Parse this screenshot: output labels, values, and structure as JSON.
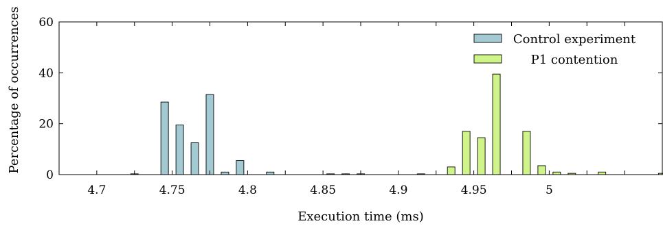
{
  "chart_data": {
    "type": "bar",
    "title": "",
    "xlabel": "Execution time (ms)",
    "ylabel": "Percentage of occurrences",
    "xlim": [
      4.675,
      5.075
    ],
    "ylim": [
      0,
      60
    ],
    "x_ticks": [
      4.7,
      4.75,
      4.8,
      4.85,
      4.9,
      4.95,
      5
    ],
    "x_tick_labels": [
      "4.7",
      "4.75",
      "4.8",
      "4.85",
      "4.9",
      "4.95",
      "5"
    ],
    "y_ticks": [
      0,
      20,
      40,
      60
    ],
    "y_tick_labels": [
      "0",
      "20",
      "40",
      "60"
    ],
    "grid": false,
    "legend_position": "top-right",
    "bar_width": 0.005,
    "series": [
      {
        "name": "Control experiment",
        "color": "#a3cad3",
        "x": [
          4.725,
          4.745,
          4.755,
          4.765,
          4.775,
          4.785,
          4.795,
          4.815,
          4.855,
          4.865,
          4.875,
          4.915
        ],
        "values": [
          0.3,
          28.5,
          19.5,
          12.5,
          31.5,
          1.0,
          5.5,
          1.0,
          0.3,
          0.3,
          0.3,
          0.3
        ]
      },
      {
        "name": "P1 contention",
        "color": "#cff58a",
        "x": [
          4.935,
          4.945,
          4.955,
          4.965,
          4.985,
          4.995,
          5.005,
          5.015,
          5.035,
          5.075
        ],
        "values": [
          3.0,
          17.0,
          14.5,
          39.5,
          17.0,
          3.5,
          1.0,
          0.5,
          1.0,
          0.5
        ]
      }
    ]
  }
}
